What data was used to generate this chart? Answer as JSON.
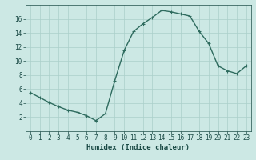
{
  "x": [
    0,
    1,
    2,
    3,
    4,
    5,
    6,
    7,
    8,
    9,
    10,
    11,
    12,
    13,
    14,
    15,
    16,
    17,
    18,
    19,
    20,
    21,
    22,
    23
  ],
  "y": [
    5.5,
    4.8,
    4.1,
    3.5,
    3.0,
    2.7,
    2.2,
    1.5,
    2.5,
    7.2,
    11.5,
    14.2,
    15.3,
    16.2,
    17.2,
    17.0,
    16.7,
    16.4,
    14.2,
    12.5,
    9.3,
    8.6,
    8.2,
    9.3
  ],
  "xlabel": "Humidex (Indice chaleur)",
  "ylim": [
    0,
    18
  ],
  "xlim": [
    -0.5,
    23.5
  ],
  "yticks": [
    2,
    4,
    6,
    8,
    10,
    12,
    14,
    16
  ],
  "xticks": [
    0,
    1,
    2,
    3,
    4,
    5,
    6,
    7,
    8,
    9,
    10,
    11,
    12,
    13,
    14,
    15,
    16,
    17,
    18,
    19,
    20,
    21,
    22,
    23
  ],
  "line_color": "#2e6b5e",
  "marker": "+",
  "bg_color": "#cce8e4",
  "grid_color": "#aacfca",
  "axis_label_color": "#1a4a45",
  "tick_label_color": "#1a4a45",
  "tick_fontsize": 5.5,
  "xlabel_fontsize": 6.5,
  "marker_size": 3,
  "linewidth": 1.0
}
